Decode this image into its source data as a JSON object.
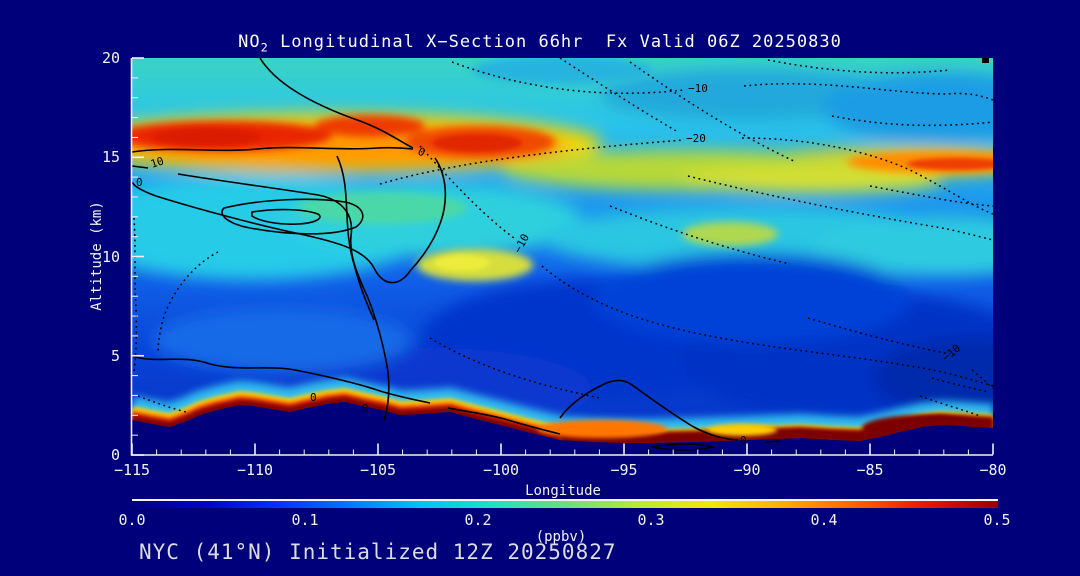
{
  "title": {
    "prefix": "NO",
    "sub": "2",
    "rest": " Longitudinal X−Section 66hr  Fx Valid 06Z 20250830"
  },
  "footer": {
    "text": "NYC (41°N) Initialized 12Z 20250827"
  },
  "axes": {
    "y_label": "Altitude (km)",
    "y_ticks": [
      "20",
      "15",
      "10",
      "5",
      "0"
    ],
    "x_label": "Longitude",
    "x_ticks": [
      "−115",
      "−110",
      "−105",
      "−100",
      "−95",
      "−90",
      "−85",
      "−80"
    ]
  },
  "colorbar": {
    "ticks": [
      "0.0",
      "0.1",
      "0.2",
      "0.3",
      "0.4",
      "0.5"
    ],
    "units": "(ppbv)",
    "stops": [
      "#000080",
      "#0000c8",
      "#0030ff",
      "#0078ff",
      "#00c0f8",
      "#22e0c0",
      "#66e080",
      "#b8e838",
      "#f0e800",
      "#ffae00",
      "#ff6400",
      "#e81600",
      "#990000"
    ]
  },
  "plot": {
    "contour_labels": [
      {
        "text": "10"
      },
      {
        "text": "0"
      },
      {
        "text": "0"
      },
      {
        "text": "−10"
      },
      {
        "text": "−20"
      },
      {
        "text": "−10"
      },
      {
        "text": "−10"
      },
      {
        "text": "0"
      },
      {
        "text": "0"
      },
      {
        "text": "0"
      }
    ]
  },
  "chart_data": {
    "type": "heatmap",
    "title": "NO2 Longitudinal X-Section 66hr  Fx Valid 06Z 20250830",
    "subtitle": "NYC (41°N) Initialized 12Z 20250827",
    "xlabel": "Longitude",
    "ylabel": "Altitude (km)",
    "xlim": [
      -115,
      -80
    ],
    "ylim": [
      0,
      20
    ],
    "x_ticks": [
      -115,
      -110,
      -105,
      -100,
      -95,
      -90,
      -85,
      -80
    ],
    "y_ticks": [
      0,
      5,
      10,
      15,
      20
    ],
    "colorbar": {
      "label": "(ppbv)",
      "min": 0.0,
      "max": 0.5,
      "ticks": [
        0.0,
        0.1,
        0.2,
        0.3,
        0.4,
        0.5
      ],
      "palette": "navy-blue-cyan-green-yellow-orange-red-darkred"
    },
    "x": [
      -115,
      -110,
      -105,
      -100,
      -95,
      -90,
      -85,
      -80
    ],
    "y": [
      0,
      2,
      5,
      8,
      10,
      13,
      16,
      18,
      20
    ],
    "values_ppbv": [
      [
        0.0,
        0.0,
        0.0,
        0.45,
        0.5,
        0.5,
        0.45,
        0.5
      ],
      [
        0.15,
        0.5,
        0.4,
        0.2,
        0.12,
        0.1,
        0.1,
        0.5
      ],
      [
        0.15,
        0.13,
        0.12,
        0.1,
        0.08,
        0.07,
        0.08,
        0.09
      ],
      [
        0.18,
        0.16,
        0.13,
        0.12,
        0.1,
        0.08,
        0.08,
        0.1
      ],
      [
        0.2,
        0.22,
        0.2,
        0.3,
        0.13,
        0.1,
        0.12,
        0.13
      ],
      [
        0.28,
        0.25,
        0.24,
        0.22,
        0.26,
        0.22,
        0.28,
        0.3
      ],
      [
        0.45,
        0.48,
        0.42,
        0.45,
        0.3,
        0.26,
        0.3,
        0.42
      ],
      [
        0.3,
        0.3,
        0.33,
        0.3,
        0.25,
        0.22,
        0.2,
        0.18
      ],
      [
        0.27,
        0.27,
        0.28,
        0.25,
        0.22,
        0.2,
        0.18,
        0.15
      ]
    ],
    "overlay_contours": {
      "solid_labels": [
        0,
        10
      ],
      "dotted_labels": [
        -10,
        -20
      ],
      "note": "solid black contours = zero/positive values, dotted = negative"
    },
    "terrain": "surface terrain silhouette rises to ~2.7 km near longitude −106, flat ~0.7 km east of −95"
  }
}
